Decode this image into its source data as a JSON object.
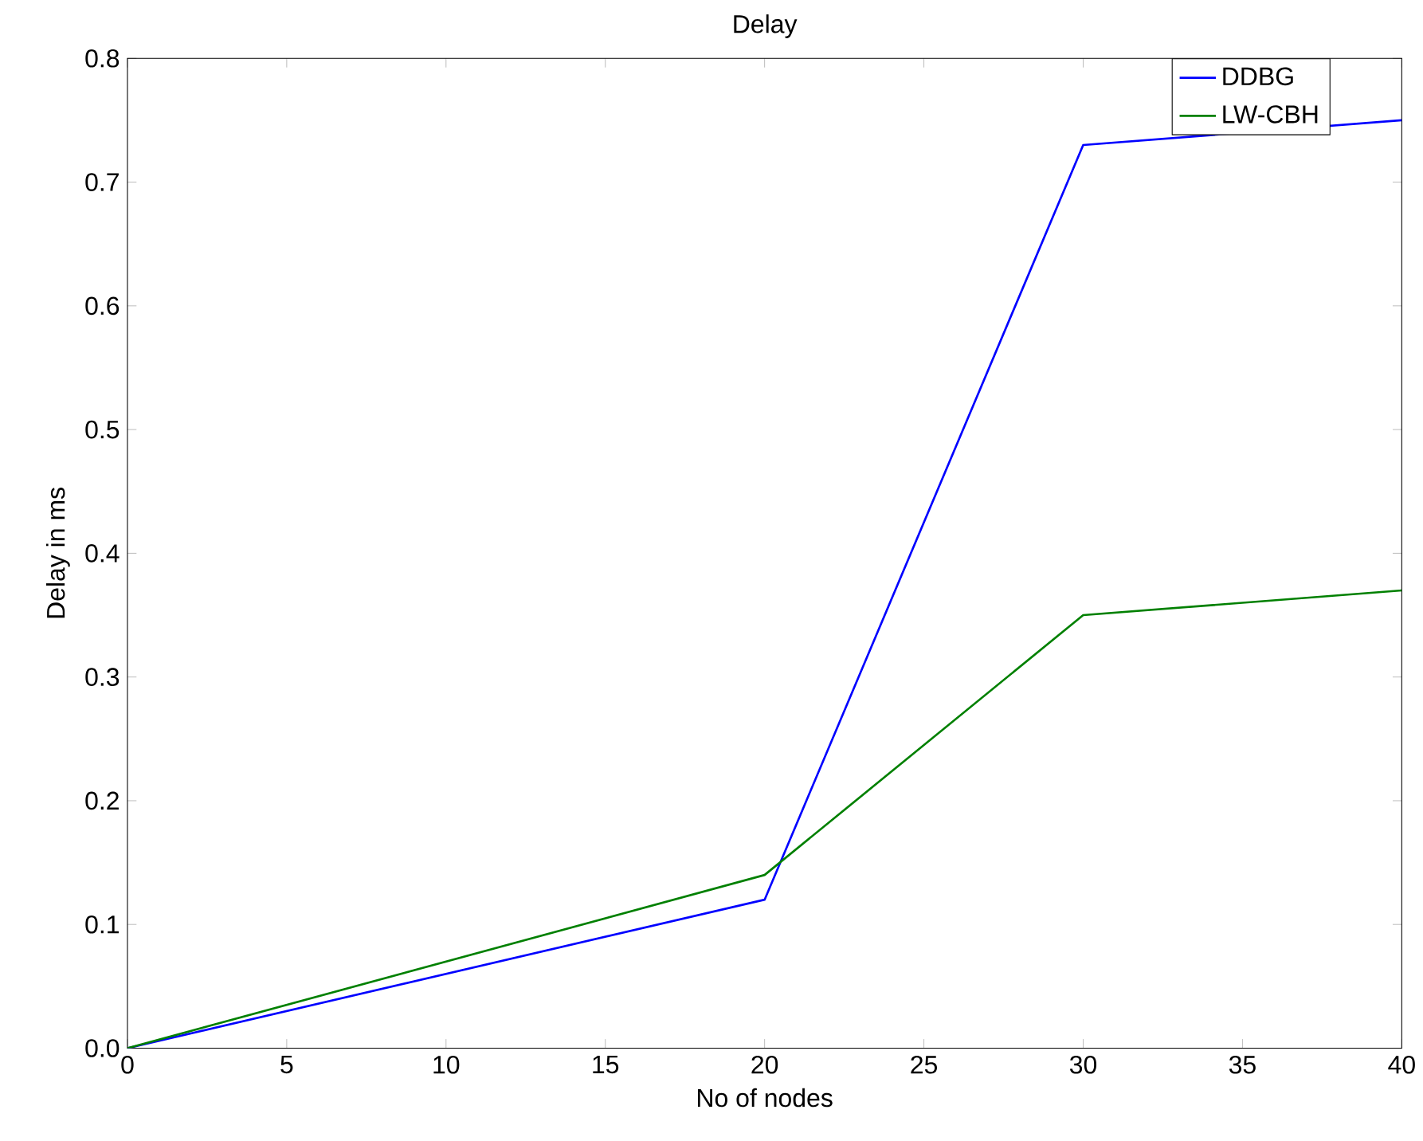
{
  "chart_data": {
    "type": "line",
    "title": "Delay",
    "xlabel": "No of nodes",
    "ylabel": "Delay in ms",
    "x": [
      0,
      20,
      30,
      40
    ],
    "series": [
      {
        "name": "DDBG",
        "color": "#0000ff",
        "values": [
          0,
          0.12,
          0.73,
          0.75
        ]
      },
      {
        "name": "LW-CBH",
        "color": "#008000",
        "values": [
          0,
          0.14,
          0.35,
          0.37
        ]
      }
    ],
    "xlim": [
      0,
      40
    ],
    "xticks": [
      0,
      5,
      10,
      15,
      20,
      25,
      30,
      35,
      40
    ],
    "ylim": [
      0,
      0.8
    ],
    "yticks": [
      {
        "value": 0,
        "label": "0.0"
      },
      {
        "value": 0.1,
        "label": "0.1"
      },
      {
        "value": 0.2,
        "label": "0.2"
      },
      {
        "value": 0.3,
        "label": "0.3"
      },
      {
        "value": 0.4,
        "label": "0.4"
      },
      {
        "value": 0.5,
        "label": "0.5"
      },
      {
        "value": 0.6,
        "label": "0.6"
      },
      {
        "value": 0.7,
        "label": "0.7"
      },
      {
        "value": 0.8,
        "label": "0.8"
      }
    ],
    "grid": false,
    "legend": "top right",
    "marker": "none",
    "line_style": "solid"
  }
}
